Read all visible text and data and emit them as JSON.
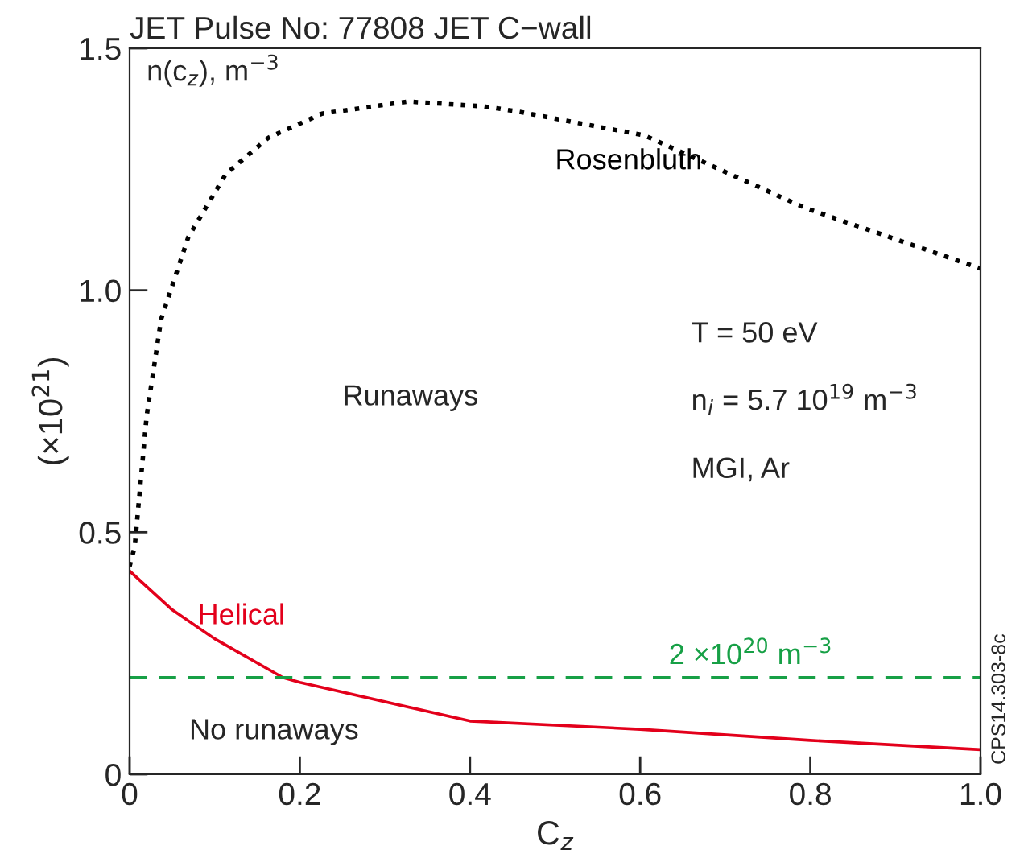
{
  "chart_data": {
    "type": "line",
    "title": "JET Pulse No: 77808 JET C−wall",
    "xlabel": "C$_{z}$",
    "ylabel": "(×10$^{21}$)",
    "series": [
      {
        "name": "Rosenbluth",
        "color": "#000000",
        "line_style": "dotted",
        "x": [
          0,
          0.006,
          0.02,
          0.037,
          0.069,
          0.113,
          0.163,
          0.226,
          0.327,
          0.416,
          0.454,
          0.605,
          0.794,
          1.0
        ],
        "values": [
          0.43,
          0.47,
          0.74,
          0.94,
          1.11,
          1.24,
          1.315,
          1.365,
          1.39,
          1.38,
          1.37,
          1.32,
          1.17,
          1.045
        ]
      },
      {
        "name": "Helical",
        "color": "#e3001b",
        "line_style": "solid",
        "x": [
          0,
          0.05,
          0.1,
          0.18,
          0.2,
          0.4,
          0.6,
          0.8,
          1.0
        ],
        "values": [
          0.42,
          0.34,
          0.28,
          0.2,
          0.19,
          0.11,
          0.093,
          0.07,
          0.051
        ]
      }
    ],
    "xlim": [
      0,
      1.0
    ],
    "ylim": [
      0,
      1.5
    ],
    "xticks": [
      0,
      0.2,
      0.4,
      0.6,
      0.8,
      {
        "value": 1.0,
        "label": "1.0"
      }
    ],
    "yticks": [
      0,
      0.5,
      {
        "value": 1.0,
        "label": "1.0"
      },
      1.5
    ],
    "ref_lines": [
      {
        "axis": "y",
        "value": 0.2,
        "label": "2 ×10$^{20}$ m$^{−3}$",
        "color": "#17a046",
        "line_style": "dashed"
      }
    ],
    "annotations": [
      "n(c$_{z}$), m$^{−3}$",
      "Runaways",
      "No runaways",
      "T = 50 eV",
      "n$_{i}$ = 5.7 10$^{19}$ m$^{−3}$",
      "MGI, Ar",
      "CPS14.303-8c"
    ],
    "grid": false,
    "legend": false
  }
}
